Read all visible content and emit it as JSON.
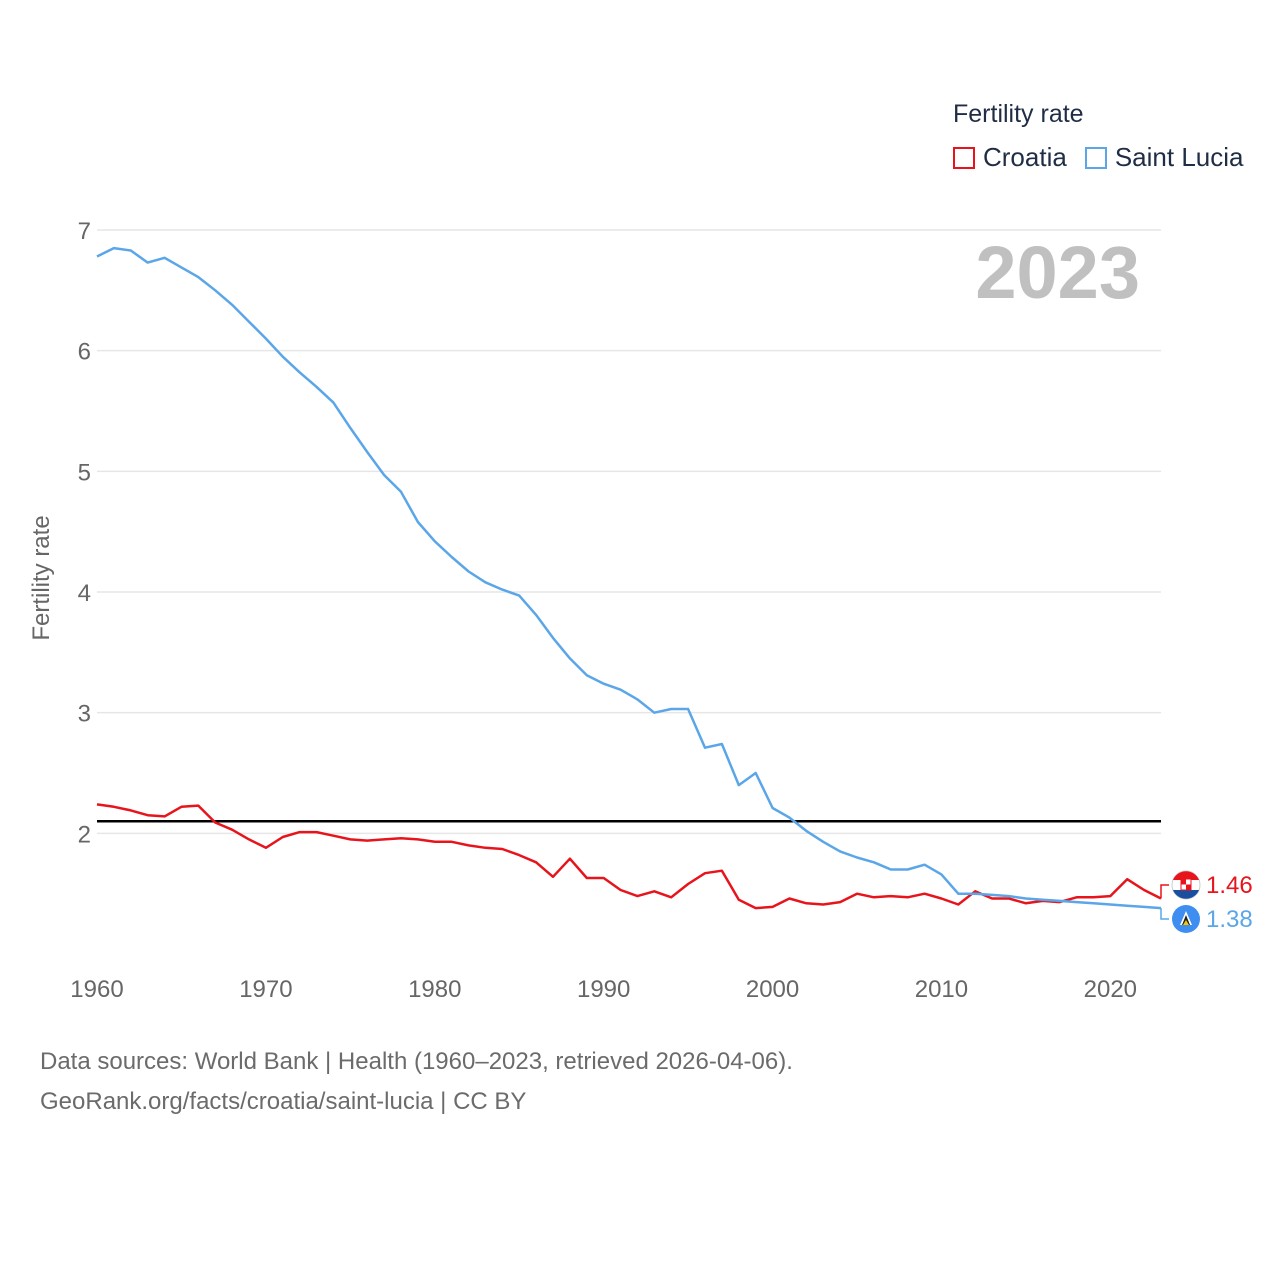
{
  "legend": {
    "title": "Fertility rate",
    "items": [
      {
        "label": "Croatia",
        "color": "#e8141c"
      },
      {
        "label": "Saint Lucia",
        "color": "#5aa6e8"
      }
    ]
  },
  "year_label": "2023",
  "footer": {
    "line1": "Data sources: World Bank | Health (1960–2023, retrieved 2026-04-06).",
    "line2": "GeoRank.org/facts/croatia/saint-lucia | CC BY"
  },
  "chart_data": {
    "type": "line",
    "title": "Fertility rate",
    "xlabel": "",
    "ylabel": "Fertility rate",
    "xlim": [
      1960,
      2023
    ],
    "ylim": [
      1.0,
      7.0
    ],
    "x_ticks": [
      1960,
      1970,
      1980,
      1990,
      2000,
      2010,
      2020
    ],
    "y_ticks": [
      2,
      3,
      4,
      5,
      6,
      7
    ],
    "grid": true,
    "reference_line": {
      "y": 2.1,
      "color": "#000000"
    },
    "x": [
      1960,
      1961,
      1962,
      1963,
      1964,
      1965,
      1966,
      1967,
      1968,
      1969,
      1970,
      1971,
      1972,
      1973,
      1974,
      1975,
      1976,
      1977,
      1978,
      1979,
      1980,
      1981,
      1982,
      1983,
      1984,
      1985,
      1986,
      1987,
      1988,
      1989,
      1990,
      1991,
      1992,
      1993,
      1994,
      1995,
      1996,
      1997,
      1998,
      1999,
      2000,
      2001,
      2002,
      2003,
      2004,
      2005,
      2006,
      2007,
      2008,
      2009,
      2010,
      2011,
      2012,
      2013,
      2014,
      2015,
      2016,
      2017,
      2018,
      2019,
      2020,
      2021,
      2022,
      2023
    ],
    "series": [
      {
        "name": "Croatia",
        "color": "#e8141c",
        "end_label": "1.46",
        "values": [
          2.24,
          2.22,
          2.19,
          2.15,
          2.14,
          2.22,
          2.23,
          2.09,
          2.03,
          1.95,
          1.88,
          1.97,
          2.01,
          2.01,
          1.98,
          1.95,
          1.94,
          1.95,
          1.96,
          1.95,
          1.93,
          1.93,
          1.9,
          1.88,
          1.87,
          1.82,
          1.76,
          1.64,
          1.79,
          1.63,
          1.63,
          1.53,
          1.48,
          1.52,
          1.47,
          1.58,
          1.67,
          1.69,
          1.45,
          1.38,
          1.39,
          1.46,
          1.42,
          1.41,
          1.43,
          1.5,
          1.47,
          1.48,
          1.47,
          1.5,
          1.46,
          1.41,
          1.52,
          1.46,
          1.46,
          1.42,
          1.44,
          1.43,
          1.47,
          1.47,
          1.48,
          1.62,
          1.53,
          1.46
        ]
      },
      {
        "name": "Saint Lucia",
        "color": "#5aa6e8",
        "end_label": "1.38",
        "values": [
          6.78,
          6.85,
          6.83,
          6.73,
          6.77,
          6.69,
          6.61,
          6.5,
          6.38,
          6.24,
          6.1,
          5.95,
          5.82,
          5.7,
          5.57,
          5.36,
          5.16,
          4.97,
          4.83,
          4.58,
          4.42,
          4.29,
          4.17,
          4.08,
          4.02,
          3.97,
          3.81,
          3.62,
          3.45,
          3.31,
          3.24,
          3.19,
          3.11,
          3.0,
          3.03,
          3.03,
          2.71,
          2.74,
          2.4,
          2.5,
          2.21,
          2.13,
          2.02,
          1.93,
          1.85,
          1.8,
          1.76,
          1.7,
          1.7,
          1.74,
          1.66,
          1.5,
          1.5,
          1.49,
          1.48,
          1.46,
          1.45,
          1.44,
          1.43,
          1.42,
          1.41,
          1.4,
          1.39,
          1.38
        ]
      }
    ]
  }
}
